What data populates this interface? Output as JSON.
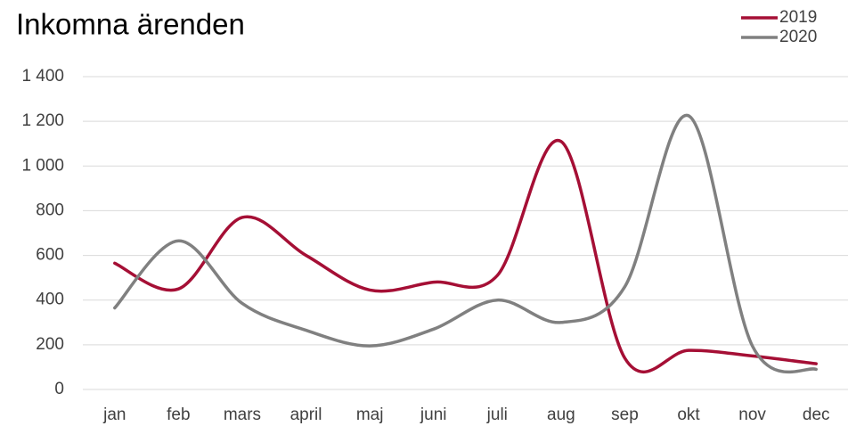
{
  "chart_data": {
    "type": "line",
    "title": "Inkomna ärenden",
    "categories": [
      "jan",
      "feb",
      "mars",
      "april",
      "maj",
      "juni",
      "juli",
      "aug",
      "sep",
      "okt",
      "nov",
      "dec"
    ],
    "series": [
      {
        "name": "2019",
        "color": "#a50f35",
        "values": [
          565,
          450,
          770,
          600,
          445,
          480,
          510,
          1110,
          140,
          175,
          150,
          115
        ]
      },
      {
        "name": "2020",
        "color": "#808080",
        "values": [
          365,
          665,
          385,
          265,
          195,
          270,
          400,
          300,
          460,
          1225,
          195,
          90
        ]
      }
    ],
    "ylim": [
      0,
      1400
    ],
    "yticks": [
      0,
      200,
      400,
      600,
      800,
      {
        "value": 1000,
        "label": "1 000"
      },
      {
        "value": 1200,
        "label": "1 200"
      },
      {
        "value": 1400,
        "label": "1 400"
      }
    ],
    "grid": true,
    "smooth": true,
    "legend": "top-right"
  }
}
